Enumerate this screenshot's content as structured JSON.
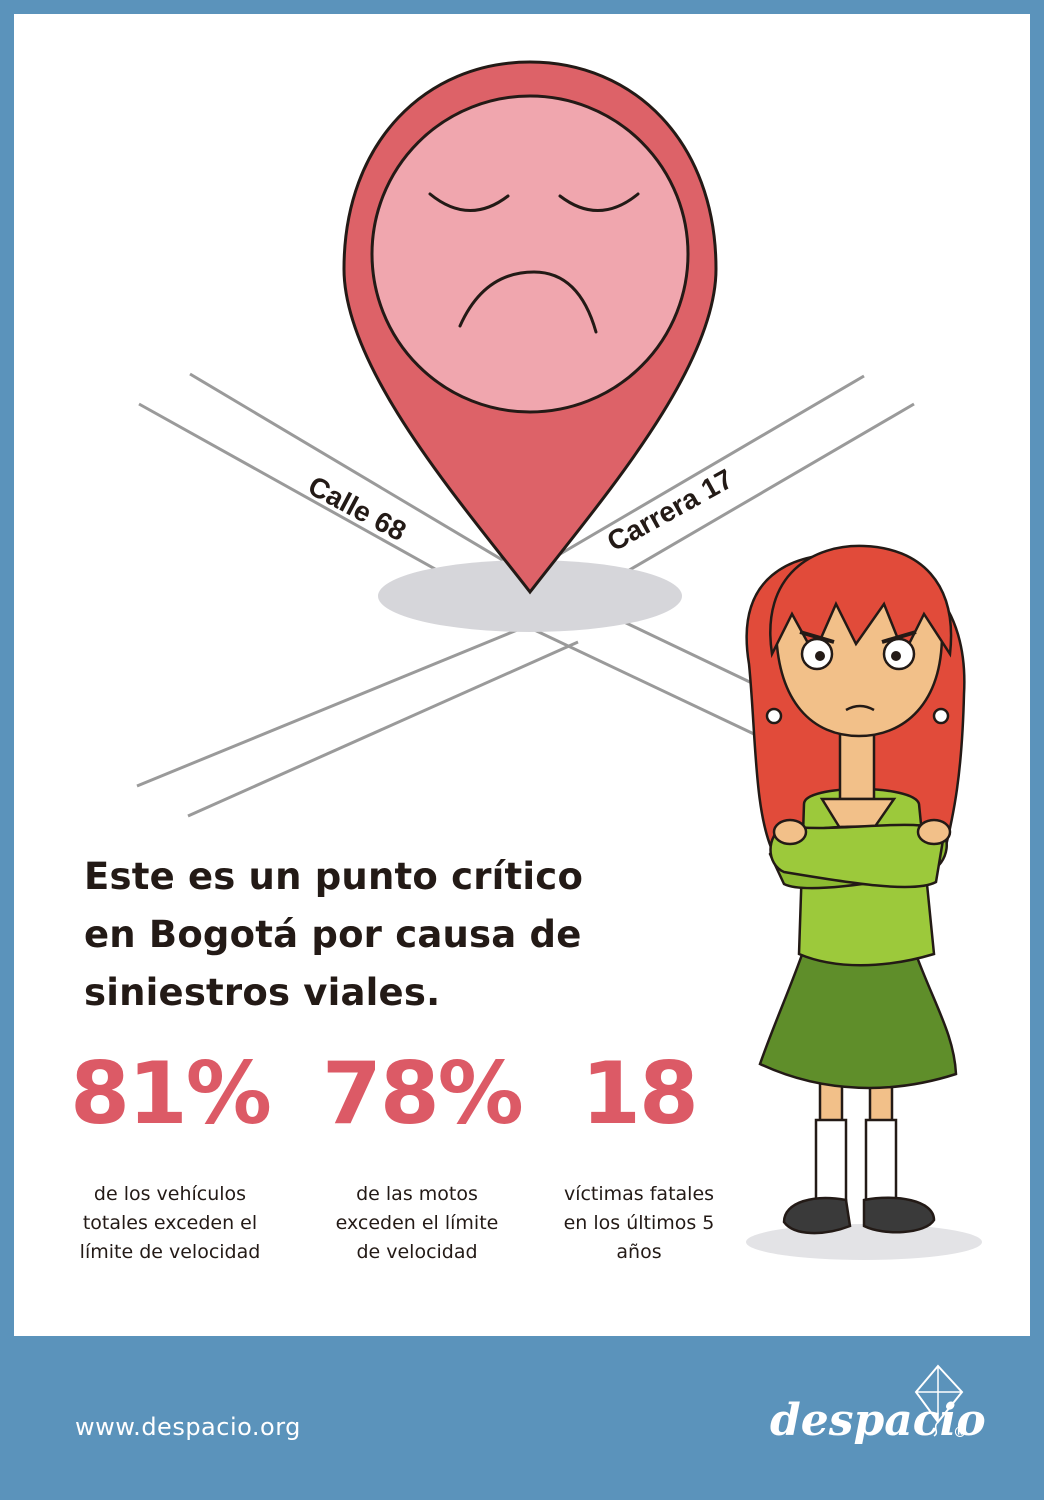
{
  "map": {
    "street_1": "Calle 68",
    "street_2": "Carrera 17"
  },
  "headline": "Este es un punto crítico en Bogotá por causa de siniestros viales.",
  "stats": [
    {
      "value": "81%",
      "description": "de los vehículos totales exceden el límite de velocidad"
    },
    {
      "value": "78%",
      "description": "de las motos exceden el límite de velocidad"
    },
    {
      "value": "18",
      "description": "víctimas fatales en los últimos 5 años"
    }
  ],
  "footer": {
    "website": "www.despacio.org",
    "brand": "despacio",
    "registered": "®"
  },
  "colors": {
    "border": "#5b93bb",
    "pin": "#dd6268",
    "face": "#f0a6ae",
    "stat": "#dc5a66"
  }
}
